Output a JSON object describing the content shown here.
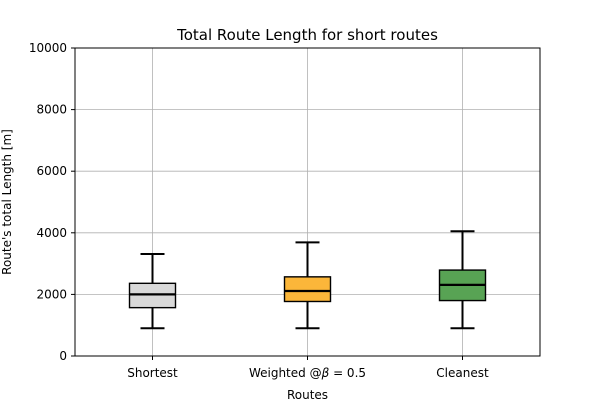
{
  "chart_data": {
    "type": "boxplot",
    "title": "Total Route Length for short routes",
    "xlabel": "Routes",
    "ylabel": "Route's total Length [m]",
    "ylim": [
      0,
      10000
    ],
    "yticks": [
      0,
      2000,
      4000,
      6000,
      8000,
      10000
    ],
    "grid": true,
    "legend": "none",
    "categories": [
      "Shortest",
      "Weighted",
      "Cleanest"
    ],
    "category_suffix": {
      "1": {
        "prefix": "Weighted @",
        "symbol": "β",
        "suffix": "= 0.5"
      }
    },
    "series": [
      {
        "category": "Shortest",
        "whisker_low": 900,
        "q1": 1570,
        "median": 2000,
        "q3": 2360,
        "whisker_high": 3310,
        "color": "#d9d9d9"
      },
      {
        "category": "Weighted",
        "whisker_low": 900,
        "q1": 1770,
        "median": 2110,
        "q3": 2570,
        "whisker_high": 3690,
        "color": "#fbb63a"
      },
      {
        "category": "Cleanest",
        "whisker_low": 900,
        "q1": 1800,
        "median": 2310,
        "q3": 2790,
        "whisker_high": 4050,
        "color": "#58a354"
      }
    ]
  }
}
